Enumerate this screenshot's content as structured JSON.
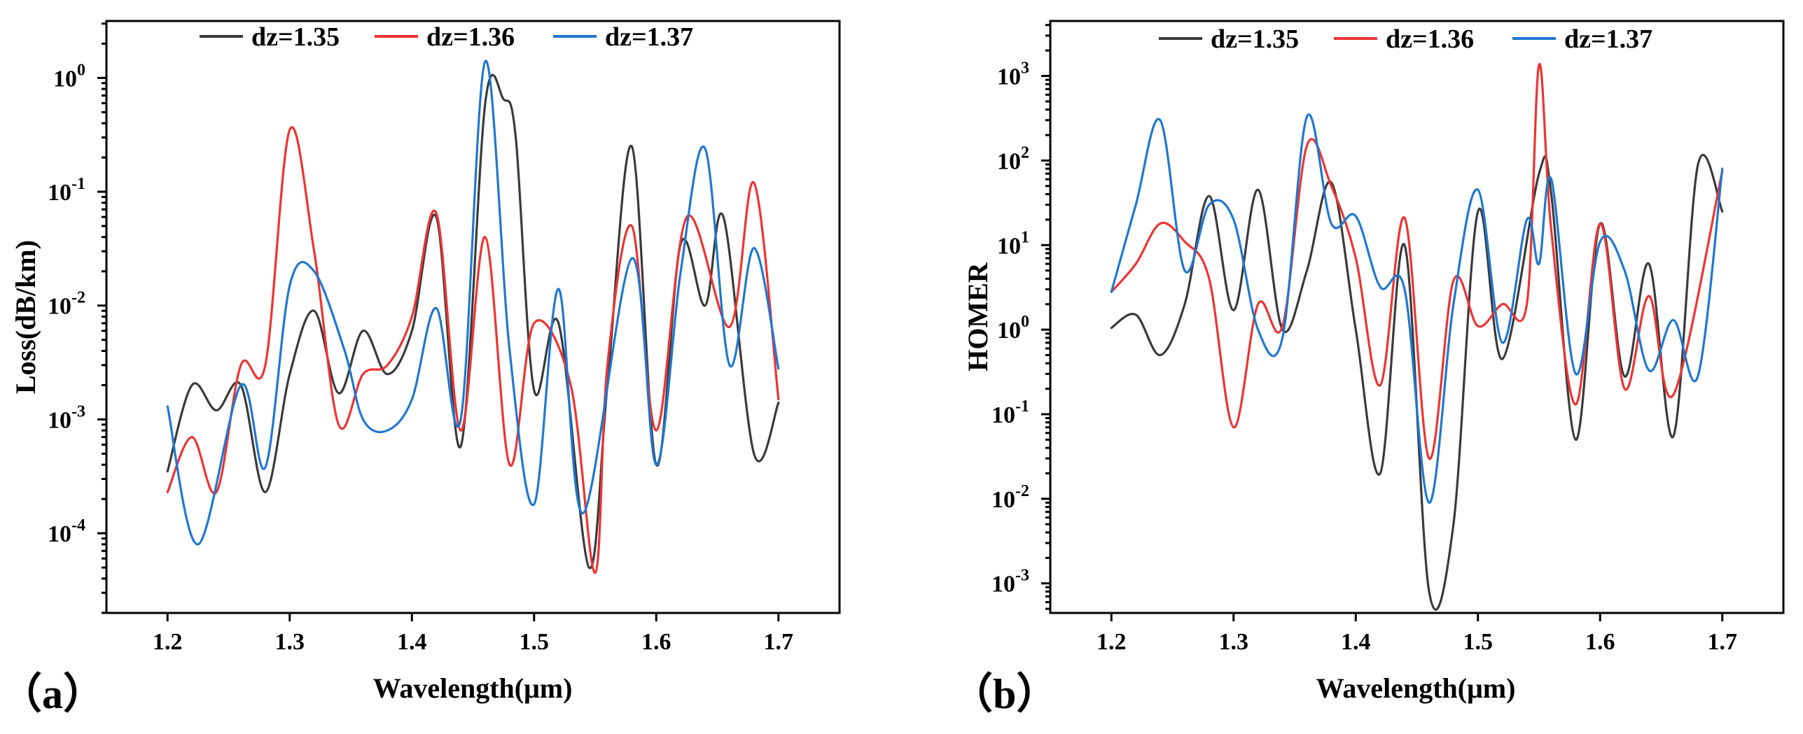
{
  "colors": {
    "dz135": "#3a3a3a",
    "dz136": "#ee3333",
    "dz137": "#1f77d0"
  },
  "chart_data": [
    {
      "type": "line",
      "panel_label": "（a）",
      "xlabel": "Wavelength(μm)",
      "ylabel": "Loss(dB/km)",
      "yscale": "log",
      "xlim": [
        1.15,
        1.75
      ],
      "ylim_log10": [
        -4.7,
        0.5
      ],
      "x_ticks": [
        1.2,
        1.3,
        1.4,
        1.5,
        1.6,
        1.7
      ],
      "x_tick_labels": [
        "1.2",
        "1.3",
        "1.4",
        "1.5",
        "1.6",
        "1.7"
      ],
      "y_ticks_log10": [
        -4,
        -3,
        -2,
        -1,
        0
      ],
      "y_tick_labels": [
        {
          "base": "10",
          "exp": "-4"
        },
        {
          "base": "10",
          "exp": "-3"
        },
        {
          "base": "10",
          "exp": "-2"
        },
        {
          "base": "10",
          "exp": "-1"
        },
        {
          "base": "10",
          "exp": "0"
        }
      ],
      "legend_position": "top",
      "series": [
        {
          "name": "dz=1.35",
          "color_key": "dz135",
          "points": [
            [
              1.2,
              0.00035
            ],
            [
              1.22,
              0.002
            ],
            [
              1.24,
              0.0012
            ],
            [
              1.26,
              0.002
            ],
            [
              1.28,
              0.00023
            ],
            [
              1.3,
              0.0025
            ],
            [
              1.32,
              0.009
            ],
            [
              1.34,
              0.0017
            ],
            [
              1.36,
              0.006
            ],
            [
              1.38,
              0.0025
            ],
            [
              1.4,
              0.006
            ],
            [
              1.42,
              0.06
            ],
            [
              1.44,
              0.00058
            ],
            [
              1.46,
              0.6
            ],
            [
              1.475,
              0.65
            ],
            [
              1.485,
              0.3
            ],
            [
              1.5,
              0.0018
            ],
            [
              1.52,
              0.007
            ],
            [
              1.545,
              5e-05
            ],
            [
              1.56,
              0.002
            ],
            [
              1.58,
              0.25
            ],
            [
              1.6,
              0.0004
            ],
            [
              1.62,
              0.035
            ],
            [
              1.64,
              0.01
            ],
            [
              1.655,
              0.06
            ],
            [
              1.68,
              0.0005
            ],
            [
              1.7,
              0.0014
            ]
          ]
        },
        {
          "name": "dz=1.36",
          "color_key": "dz136",
          "points": [
            [
              1.2,
              0.00023
            ],
            [
              1.22,
              0.0007
            ],
            [
              1.24,
              0.00023
            ],
            [
              1.26,
              0.003
            ],
            [
              1.28,
              0.003
            ],
            [
              1.3,
              0.35
            ],
            [
              1.32,
              0.03
            ],
            [
              1.34,
              0.0009
            ],
            [
              1.36,
              0.0025
            ],
            [
              1.38,
              0.003
            ],
            [
              1.4,
              0.008
            ],
            [
              1.42,
              0.065
            ],
            [
              1.44,
              0.0008
            ],
            [
              1.46,
              0.04
            ],
            [
              1.48,
              0.0004
            ],
            [
              1.5,
              0.007
            ],
            [
              1.53,
              0.002
            ],
            [
              1.55,
              4.5e-05
            ],
            [
              1.56,
              0.003
            ],
            [
              1.58,
              0.05
            ],
            [
              1.6,
              0.0008
            ],
            [
              1.625,
              0.06
            ],
            [
              1.66,
              0.0065
            ],
            [
              1.68,
              0.12
            ],
            [
              1.7,
              0.0015
            ]
          ]
        },
        {
          "name": "dz=1.37",
          "color_key": "dz137",
          "points": [
            [
              1.2,
              0.0013
            ],
            [
              1.225,
              8e-05
            ],
            [
              1.26,
              0.002
            ],
            [
              1.28,
              0.00038
            ],
            [
              1.3,
              0.015
            ],
            [
              1.32,
              0.02
            ],
            [
              1.345,
              0.004
            ],
            [
              1.36,
              0.001
            ],
            [
              1.38,
              0.0008
            ],
            [
              1.4,
              0.0015
            ],
            [
              1.42,
              0.0095
            ],
            [
              1.44,
              0.001
            ],
            [
              1.46,
              1.4
            ],
            [
              1.48,
              0.004
            ],
            [
              1.5,
              0.00018
            ],
            [
              1.52,
              0.014
            ],
            [
              1.54,
              0.00015
            ],
            [
              1.58,
              0.026
            ],
            [
              1.6,
              0.0004
            ],
            [
              1.62,
              0.02
            ],
            [
              1.64,
              0.24
            ],
            [
              1.66,
              0.003
            ],
            [
              1.68,
              0.032
            ],
            [
              1.7,
              0.0028
            ]
          ]
        }
      ]
    },
    {
      "type": "line",
      "panel_label": "（b）",
      "xlabel": "Wavelength(μm)",
      "ylabel": "HOMER",
      "yscale": "log",
      "xlim": [
        1.15,
        1.75
      ],
      "ylim_log10": [
        -3.35,
        3.65
      ],
      "x_ticks": [
        1.2,
        1.3,
        1.4,
        1.5,
        1.6,
        1.7
      ],
      "x_tick_labels": [
        "1.2",
        "1.3",
        "1.4",
        "1.5",
        "1.6",
        "1.7"
      ],
      "y_ticks_log10": [
        -3,
        -2,
        -1,
        0,
        1,
        2,
        3
      ],
      "y_tick_labels": [
        {
          "base": "10",
          "exp": "-3"
        },
        {
          "base": "10",
          "exp": "-2"
        },
        {
          "base": "10",
          "exp": "-1"
        },
        {
          "base": "10",
          "exp": "0"
        },
        {
          "base": "10",
          "exp": "1"
        },
        {
          "base": "10",
          "exp": "2"
        },
        {
          "base": "10",
          "exp": "3"
        }
      ],
      "legend_position": "top",
      "series": [
        {
          "name": "dz=1.35",
          "color_key": "dz135",
          "points": [
            [
              1.2,
              1.05
            ],
            [
              1.22,
              1.5
            ],
            [
              1.24,
              0.5
            ],
            [
              1.26,
              2.0
            ],
            [
              1.28,
              38
            ],
            [
              1.3,
              1.7
            ],
            [
              1.32,
              45
            ],
            [
              1.34,
              1.0
            ],
            [
              1.36,
              5.0
            ],
            [
              1.38,
              55
            ],
            [
              1.4,
              1.0
            ],
            [
              1.42,
              0.02
            ],
            [
              1.44,
              10
            ],
            [
              1.46,
              0.0008
            ],
            [
              1.48,
              0.005
            ],
            [
              1.5,
              25
            ],
            [
              1.52,
              0.45
            ],
            [
              1.55,
              70
            ],
            [
              1.56,
              40
            ],
            [
              1.58,
              0.05
            ],
            [
              1.6,
              18
            ],
            [
              1.62,
              0.28
            ],
            [
              1.64,
              6.0
            ],
            [
              1.66,
              0.055
            ],
            [
              1.68,
              88
            ],
            [
              1.7,
              25
            ]
          ]
        },
        {
          "name": "dz=1.36",
          "color_key": "dz136",
          "points": [
            [
              1.2,
              2.8
            ],
            [
              1.22,
              6.0
            ],
            [
              1.24,
              18
            ],
            [
              1.26,
              11
            ],
            [
              1.28,
              4.0
            ],
            [
              1.3,
              0.07
            ],
            [
              1.32,
              2.0
            ],
            [
              1.34,
              1.1
            ],
            [
              1.36,
              150
            ],
            [
              1.38,
              50
            ],
            [
              1.4,
              7.0
            ],
            [
              1.42,
              0.22
            ],
            [
              1.44,
              21
            ],
            [
              1.46,
              0.03
            ],
            [
              1.48,
              3.8
            ],
            [
              1.5,
              1.1
            ],
            [
              1.52,
              2.0
            ],
            [
              1.54,
              2.0
            ],
            [
              1.55,
              1350
            ],
            [
              1.56,
              15
            ],
            [
              1.58,
              0.13
            ],
            [
              1.6,
              18
            ],
            [
              1.62,
              0.2
            ],
            [
              1.64,
              2.5
            ],
            [
              1.66,
              0.17
            ],
            [
              1.7,
              75
            ]
          ]
        },
        {
          "name": "dz=1.37",
          "color_key": "dz137",
          "points": [
            [
              1.2,
              2.8
            ],
            [
              1.22,
              30
            ],
            [
              1.24,
              300
            ],
            [
              1.26,
              5.0
            ],
            [
              1.28,
              30
            ],
            [
              1.3,
              20
            ],
            [
              1.32,
              1.0
            ],
            [
              1.34,
              0.8
            ],
            [
              1.36,
              330
            ],
            [
              1.38,
              18
            ],
            [
              1.4,
              22
            ],
            [
              1.42,
              3.2
            ],
            [
              1.44,
              3.0
            ],
            [
              1.46,
              0.009
            ],
            [
              1.48,
              2.0
            ],
            [
              1.5,
              45
            ],
            [
              1.52,
              0.7
            ],
            [
              1.54,
              20
            ],
            [
              1.55,
              6.0
            ],
            [
              1.56,
              60
            ],
            [
              1.58,
              0.3
            ],
            [
              1.6,
              11
            ],
            [
              1.62,
              5.0
            ],
            [
              1.64,
              0.33
            ],
            [
              1.66,
              1.3
            ],
            [
              1.68,
              0.28
            ],
            [
              1.7,
              80
            ]
          ]
        }
      ]
    }
  ]
}
